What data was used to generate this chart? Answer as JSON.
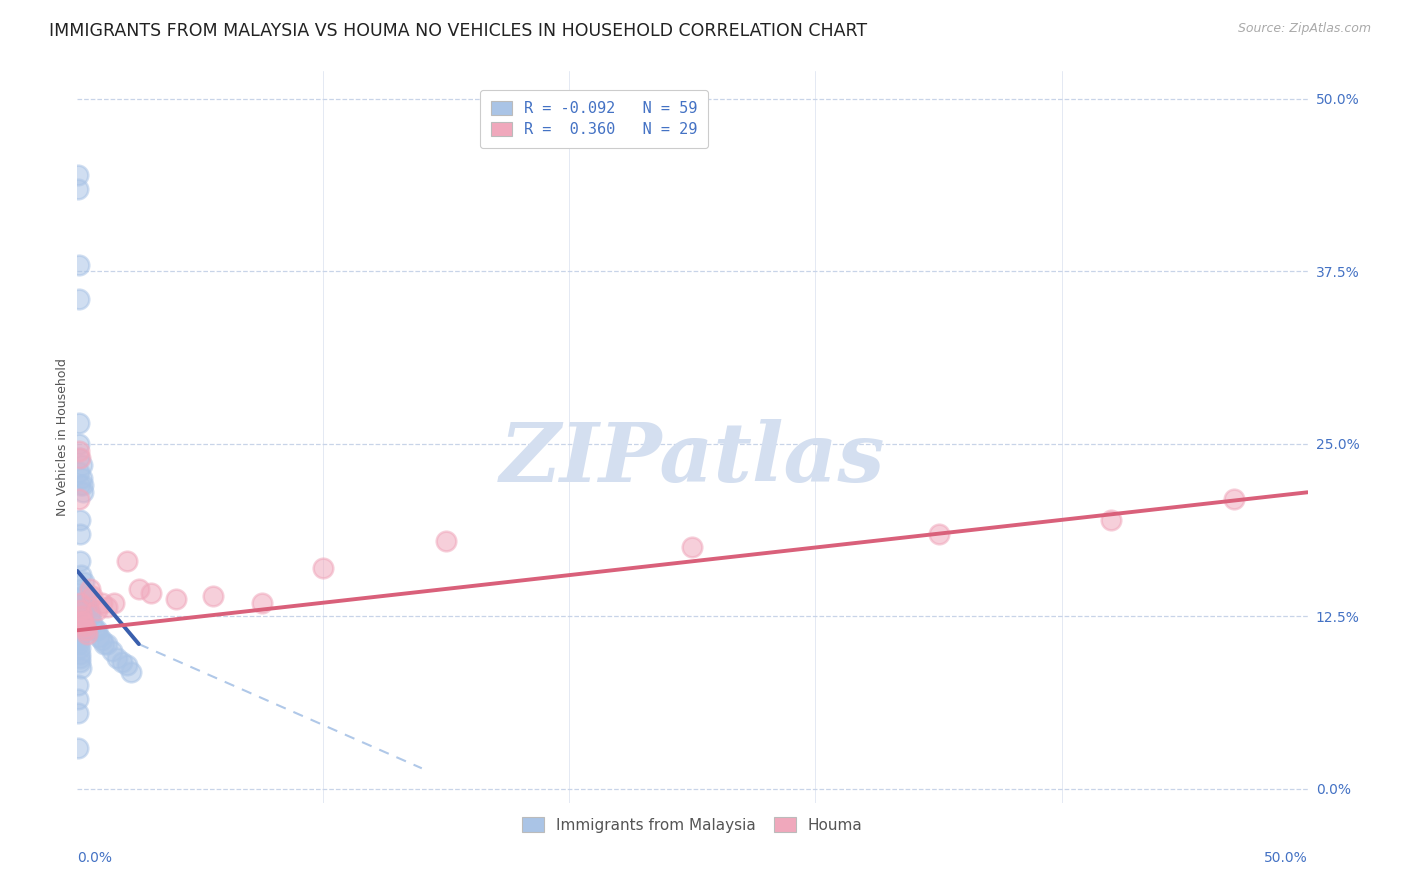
{
  "title": "IMMIGRANTS FROM MALAYSIA VS HOUMA NO VEHICLES IN HOUSEHOLD CORRELATION CHART",
  "source": "Source: ZipAtlas.com",
  "ylabel": "No Vehicles in Household",
  "ytick_values": [
    0.0,
    12.5,
    25.0,
    37.5,
    50.0
  ],
  "xlim": [
    0.0,
    50.0
  ],
  "ylim": [
    -1.0,
    52.0
  ],
  "legend_entries": [
    {
      "label": "R = -0.092   N = 59",
      "color": "#b8d0ea"
    },
    {
      "label": "R =  0.360   N = 29",
      "color": "#f2b0c0"
    }
  ],
  "watermark": "ZIPatlas",
  "blue_scatter_color": "#aac4e6",
  "pink_scatter_color": "#f0a8bc",
  "blue_line_color": "#3a5fad",
  "pink_line_color": "#d9607a",
  "dashed_line_color": "#b0c8e8",
  "background_color": "#ffffff",
  "grid_color": "#c8d4e8",
  "tick_color": "#4472c4",
  "title_fontsize": 12.5,
  "axis_label_fontsize": 9,
  "tick_fontsize": 10,
  "watermark_color": "#d4dff0",
  "watermark_fontsize": 60,
  "blue_scatter_x": [
    0.02,
    0.03,
    0.05,
    0.05,
    0.05,
    0.05,
    0.08,
    0.08,
    0.1,
    0.1,
    0.12,
    0.12,
    0.15,
    0.15,
    0.18,
    0.18,
    0.2,
    0.2,
    0.22,
    0.25,
    0.28,
    0.3,
    0.3,
    0.35,
    0.4,
    0.45,
    0.5,
    0.5,
    0.6,
    0.7,
    0.8,
    0.9,
    1.0,
    1.1,
    1.2,
    1.4,
    1.6,
    1.8,
    2.0,
    2.2,
    0.02,
    0.02,
    0.03,
    0.04,
    0.04,
    0.05,
    0.06,
    0.07,
    0.07,
    0.08,
    0.09,
    0.1,
    0.1,
    0.12,
    0.15,
    0.02,
    0.02,
    0.03,
    0.04
  ],
  "blue_scatter_y": [
    44.5,
    43.5,
    38.0,
    35.5,
    26.5,
    25.0,
    24.0,
    23.0,
    22.0,
    19.5,
    18.5,
    16.5,
    15.5,
    14.5,
    14.0,
    13.5,
    23.5,
    22.5,
    22.0,
    21.5,
    15.0,
    14.0,
    13.0,
    13.5,
    13.5,
    13.0,
    12.8,
    12.5,
    12.0,
    11.5,
    11.5,
    11.0,
    10.8,
    10.5,
    10.5,
    10.0,
    9.5,
    9.2,
    9.0,
    8.5,
    13.5,
    13.0,
    12.5,
    12.2,
    11.8,
    11.5,
    11.2,
    11.0,
    10.8,
    10.5,
    10.2,
    9.8,
    9.5,
    9.2,
    8.8,
    7.5,
    6.5,
    5.5,
    3.0
  ],
  "pink_scatter_x": [
    0.05,
    0.08,
    0.1,
    0.12,
    0.15,
    0.18,
    0.2,
    0.25,
    0.3,
    0.35,
    0.4,
    0.5,
    0.6,
    0.8,
    1.0,
    1.2,
    1.5,
    2.0,
    2.5,
    3.0,
    4.0,
    5.5,
    7.5,
    10.0,
    15.0,
    25.0,
    35.0,
    42.0,
    47.0
  ],
  "pink_scatter_y": [
    24.5,
    21.0,
    24.0,
    13.5,
    13.0,
    12.5,
    12.2,
    12.0,
    11.8,
    11.5,
    11.2,
    14.5,
    14.0,
    13.0,
    13.5,
    13.2,
    13.5,
    16.5,
    14.5,
    14.2,
    13.8,
    14.0,
    13.5,
    16.0,
    18.0,
    17.5,
    18.5,
    19.5,
    21.0
  ],
  "blue_line_start_x": 0.0,
  "blue_line_start_y": 15.8,
  "blue_line_solid_end_x": 2.5,
  "blue_line_solid_end_y": 10.5,
  "blue_line_dash_end_x": 14.0,
  "blue_line_dash_end_y": 1.5,
  "pink_line_start_x": 0.0,
  "pink_line_start_y": 11.5,
  "pink_line_end_x": 50.0,
  "pink_line_end_y": 21.5
}
